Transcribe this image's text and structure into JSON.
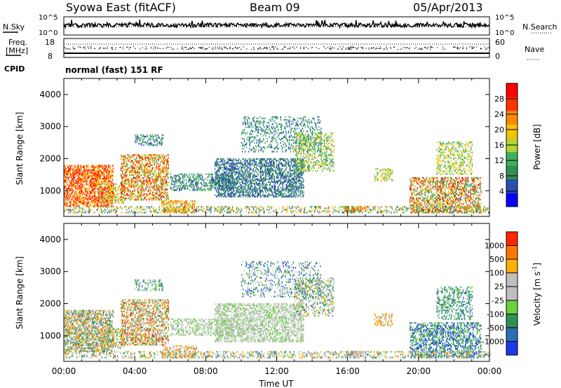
{
  "header": {
    "station": "Syowa East (fitACF)",
    "beam": "Beam 09",
    "date": "05/Apr/2013"
  },
  "noise_panel": {
    "left_label": "N.Sky",
    "right_label": "N.Search",
    "left_ticks": [
      "10^5",
      "10^0"
    ],
    "right_ticks": [
      "10^5",
      "10^0"
    ]
  },
  "freq_panel": {
    "left_label_line1": "Freq.",
    "left_label_line2": "[MHz]",
    "left_ticks": [
      "18",
      "8"
    ],
    "right_label": "Nave",
    "right_ticks": [
      "60",
      "0"
    ]
  },
  "cpid": {
    "label": "CPID",
    "value": "normal (fast) 151 RF"
  },
  "colors": {
    "power_scale": [
      "#0a00ff",
      "#2b4fb0",
      "#2f8f55",
      "#3faf5f",
      "#b3d430",
      "#f7c200",
      "#ff8800",
      "#ff3300",
      "#ff0000"
    ],
    "velocity_scale": [
      "#1a3be6",
      "#2d6fb5",
      "#2f8f55",
      "#6ad13f",
      "#bfbfbf",
      "#bfbfbf",
      "#ffb000",
      "#ff7700",
      "#ff2600"
    ]
  },
  "chart_data": [
    {
      "type": "heatmap",
      "ylabel": "Slant Range [km]",
      "ylim": [
        200,
        4500
      ],
      "xlim": [
        0,
        24
      ],
      "y_ticks": [
        1000,
        2000,
        3000,
        4000
      ],
      "colorbar": {
        "label": "Power [dB]",
        "range": [
          0,
          32
        ],
        "ticks": [
          4,
          8,
          12,
          16,
          20,
          24,
          28
        ]
      }
    },
    {
      "type": "heatmap",
      "ylabel": "Slant Range [km]",
      "xlabel": "Time UT",
      "ylim": [
        200,
        4500
      ],
      "xlim": [
        0,
        24
      ],
      "y_ticks": [
        1000,
        2000,
        3000,
        4000
      ],
      "x_ticks": [
        "00:00",
        "04:00",
        "08:00",
        "12:00",
        "16:00",
        "20:00",
        "00:00"
      ],
      "colorbar": {
        "label": "Velocity [m s",
        "label_sup": "-1",
        "label_end": "]",
        "tick_labels": [
          "1000",
          "500",
          "100",
          "25",
          "-25",
          "-100",
          "-500",
          "-1000"
        ]
      }
    }
  ]
}
